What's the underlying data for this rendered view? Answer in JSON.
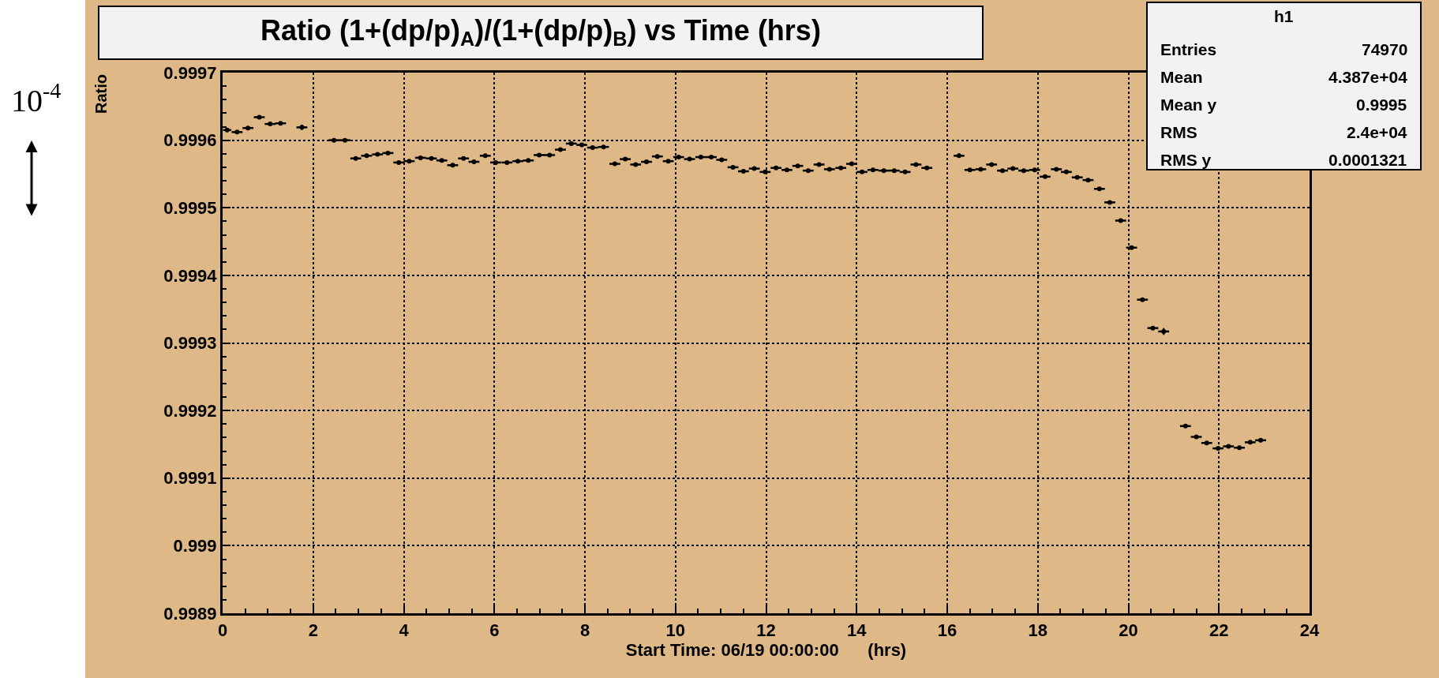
{
  "chart_data": {
    "type": "scatter",
    "title": "Ratio (1+(dp/p)$_{A}$)/(1+(dp/p)$_{B}$) vs Time (hrs)",
    "xlabel": "Start Time: 06/19 00:00:00      (hrs)",
    "ylabel": "Ratio",
    "x": [
      0.1,
      0.32,
      0.56,
      0.81,
      1.05,
      1.28,
      1.75,
      2.46,
      2.7,
      2.94,
      3.18,
      3.42,
      3.65,
      3.89,
      4.12,
      4.37,
      4.61,
      4.84,
      5.08,
      5.32,
      5.55,
      5.8,
      6.03,
      6.28,
      6.52,
      6.75,
      6.99,
      7.22,
      7.46,
      7.7,
      7.93,
      8.17,
      8.41,
      8.66,
      8.89,
      9.12,
      9.36,
      9.6,
      9.84,
      10.07,
      10.31,
      10.56,
      10.79,
      11.02,
      11.27,
      11.5,
      11.74,
      11.98,
      12.22,
      12.46,
      12.7,
      12.93,
      13.17,
      13.4,
      13.65,
      13.89,
      14.12,
      14.36,
      14.6,
      14.83,
      15.07,
      15.31,
      15.55,
      16.26,
      16.5,
      16.74,
      16.98,
      17.22,
      17.45,
      17.69,
      17.93,
      18.16,
      18.41,
      18.63,
      18.87,
      19.11,
      19.36,
      19.59,
      19.83,
      20.07,
      20.31,
      20.54,
      20.78,
      21.26,
      21.5,
      21.73,
      21.98,
      22.21,
      22.45,
      22.69,
      22.92
    ],
    "values": [
      0.999615,
      0.999612,
      0.999618,
      0.999634,
      0.999624,
      0.999625,
      0.999619,
      0.9996,
      0.9996,
      0.999573,
      0.999577,
      0.999579,
      0.999581,
      0.999567,
      0.999569,
      0.999574,
      0.999573,
      0.99957,
      0.999563,
      0.999573,
      0.999568,
      0.999577,
      0.999567,
      0.999567,
      0.999569,
      0.99957,
      0.999578,
      0.999578,
      0.999586,
      0.999595,
      0.999593,
      0.999589,
      0.99959,
      0.999565,
      0.999572,
      0.999564,
      0.999568,
      0.999576,
      0.999569,
      0.999575,
      0.999572,
      0.999575,
      0.999575,
      0.999571,
      0.99956,
      0.999554,
      0.999558,
      0.999553,
      0.999559,
      0.999556,
      0.999562,
      0.999555,
      0.999564,
      0.999557,
      0.999559,
      0.999565,
      0.999553,
      0.999556,
      0.999555,
      0.999555,
      0.999553,
      0.999564,
      0.999559,
      0.999577,
      0.999556,
      0.999557,
      0.999564,
      0.999555,
      0.999558,
      0.999555,
      0.999556,
      0.999546,
      0.999557,
      0.999553,
      0.999545,
      0.999541,
      0.999528,
      0.999508,
      0.999481,
      0.999441,
      0.999364,
      0.999322,
      0.999317,
      0.999177,
      0.999161,
      0.999152,
      0.999144,
      0.999147,
      0.999145,
      0.999153,
      0.999156
    ],
    "errors": [
      null,
      null,
      null,
      null,
      null,
      null,
      4e-06,
      null,
      null,
      null,
      null,
      null,
      null,
      null,
      null,
      null,
      null,
      null,
      null,
      null,
      null,
      null,
      null,
      null,
      null,
      null,
      null,
      null,
      null,
      null,
      null,
      null,
      null,
      null,
      null,
      null,
      null,
      null,
      null,
      null,
      null,
      null,
      null,
      null,
      null,
      null,
      null,
      null,
      null,
      null,
      null,
      null,
      null,
      null,
      null,
      null,
      null,
      null,
      null,
      null,
      null,
      null,
      null,
      3e-06,
      null,
      null,
      null,
      null,
      null,
      null,
      null,
      null,
      null,
      null,
      null,
      null,
      null,
      null,
      null,
      null,
      null,
      null,
      5e-06,
      null,
      null,
      null,
      null,
      null,
      null,
      null,
      null
    ],
    "xerrors": [
      0.09,
      0.12,
      0.12,
      0.12,
      0.12,
      0.12,
      0.12,
      0.12,
      0.12,
      0.12,
      0.12,
      0.12,
      0.12,
      0.12,
      0.12,
      0.12,
      0.12,
      0.12,
      0.12,
      0.12,
      0.12,
      0.12,
      0.12,
      0.12,
      0.12,
      0.12,
      0.12,
      0.12,
      0.12,
      0.12,
      0.12,
      0.12,
      0.12,
      0.12,
      0.12,
      0.12,
      0.12,
      0.12,
      0.12,
      0.12,
      0.12,
      0.12,
      0.12,
      0.12,
      0.12,
      0.12,
      0.12,
      0.12,
      0.12,
      0.12,
      0.12,
      0.12,
      0.12,
      0.12,
      0.12,
      0.12,
      0.12,
      0.12,
      0.12,
      0.12,
      0.12,
      0.12,
      0.12,
      0.12,
      0.12,
      0.12,
      0.12,
      0.12,
      0.12,
      0.12,
      0.12,
      0.12,
      0.12,
      0.12,
      0.12,
      0.12,
      0.12,
      0.12,
      0.12,
      0.12,
      0.12,
      0.12,
      0.12,
      0.12,
      0.12,
      0.12,
      0.12,
      0.12,
      0.12,
      0.12,
      0.12
    ],
    "color": "#000000",
    "marker": "none",
    "xlim": [
      0,
      24
    ],
    "xticks": [
      0,
      2,
      4,
      6,
      8,
      10,
      12,
      14,
      16,
      18,
      20,
      22,
      24
    ],
    "ylim": [
      0.9989,
      0.9997
    ],
    "yticks": [
      0.9989,
      0.999,
      0.9991,
      0.9992,
      0.9993,
      0.9994,
      0.9995,
      0.9996,
      0.9997
    ],
    "grid": true,
    "legend": false,
    "annotations": [
      "10$^{-4}$",
      "h1",
      "Entries",
      "74970",
      "Mean",
      "4.387e+04",
      "Mean y",
      "0.9995",
      "RMS",
      "2.4e+04",
      "RMS y",
      "0.0001321"
    ]
  }
}
